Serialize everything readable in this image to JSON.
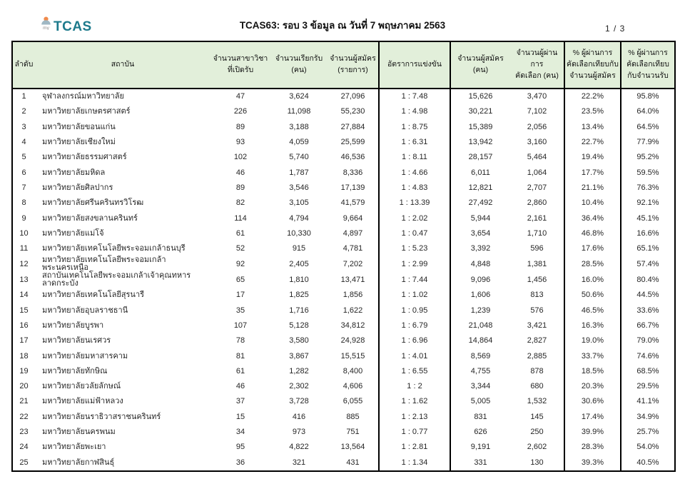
{
  "header": {
    "logo_text": "TCAS",
    "logo_sub": "my",
    "title": "TCAS63: รอบ 3 ข้อมูล ณ วันที่ 7 พฤษภาคม 2563",
    "page_indicator": "1 / 3"
  },
  "colors": {
    "header_bg": "#e2efda",
    "border": "#000000",
    "logo_teal": "#1d7a8c",
    "logo_orange": "#f08a4b"
  },
  "table": {
    "columns": [
      "ลำดับ",
      "สถาบัน",
      "จำนวนสาขาวิชา\nที่เปิดรับ",
      "จำนวนเรียกรับ\n(คน)",
      "จำนวนผู้สมัคร\n(รายการ)",
      "อัตราการแข่งขัน",
      "จำนวนผู้สมัคร\n(คน)",
      "จำนวนผู้ผ่านการ\nคัดเลือก (คน)",
      "% ผู้ผ่านการ\nคัดเลือกเทียบกับ\nจำนวนผู้สมัคร",
      "% ผู้ผ่านการ\nคัดเลือกเทียบ\nกับจำนวนรับ"
    ],
    "rows": [
      [
        "1",
        "จุฬาลงกรณ์มหาวิทยาลัย",
        "47",
        "3,624",
        "27,096",
        "1 : 7.48",
        "15,626",
        "3,470",
        "22.2%",
        "95.8%"
      ],
      [
        "2",
        "มหาวิทยาลัยเกษตรศาสตร์",
        "226",
        "11,098",
        "55,230",
        "1 : 4.98",
        "30,221",
        "7,102",
        "23.5%",
        "64.0%"
      ],
      [
        "3",
        "มหาวิทยาลัยขอนแก่น",
        "89",
        "3,188",
        "27,884",
        "1 : 8.75",
        "15,389",
        "2,056",
        "13.4%",
        "64.5%"
      ],
      [
        "4",
        "มหาวิทยาลัยเชียงใหม่",
        "93",
        "4,059",
        "25,599",
        "1 : 6.31",
        "13,942",
        "3,160",
        "22.7%",
        "77.9%"
      ],
      [
        "5",
        "มหาวิทยาลัยธรรมศาสตร์",
        "102",
        "5,740",
        "46,536",
        "1 : 8.11",
        "28,157",
        "5,464",
        "19.4%",
        "95.2%"
      ],
      [
        "6",
        "มหาวิทยาลัยมหิดล",
        "46",
        "1,787",
        "8,336",
        "1 : 4.66",
        "6,011",
        "1,064",
        "17.7%",
        "59.5%"
      ],
      [
        "7",
        "มหาวิทยาลัยศิลปากร",
        "89",
        "3,546",
        "17,139",
        "1 : 4.83",
        "12,821",
        "2,707",
        "21.1%",
        "76.3%"
      ],
      [
        "8",
        "มหาวิทยาลัยศรีนครินทรวิโรฒ",
        "82",
        "3,105",
        "41,579",
        "1 : 13.39",
        "27,492",
        "2,860",
        "10.4%",
        "92.1%"
      ],
      [
        "9",
        "มหาวิทยาลัยสงขลานครินทร์",
        "114",
        "4,794",
        "9,664",
        "1 : 2.02",
        "5,944",
        "2,161",
        "36.4%",
        "45.1%"
      ],
      [
        "10",
        "มหาวิทยาลัยแม่โจ้",
        "61",
        "10,330",
        "4,897",
        "1 : 0.47",
        "3,654",
        "1,710",
        "46.8%",
        "16.6%"
      ],
      [
        "11",
        "มหาวิทยาลัยเทคโนโลยีพระจอมเกล้าธนบุรี",
        "52",
        "915",
        "4,781",
        "1 : 5.23",
        "3,392",
        "596",
        "17.6%",
        "65.1%"
      ],
      [
        "12",
        "มหาวิทยาลัยเทคโนโลยีพระจอมเกล้าพระนครเหนือ",
        "92",
        "2,405",
        "7,202",
        "1 : 2.99",
        "4,848",
        "1,381",
        "28.5%",
        "57.4%"
      ],
      [
        "13",
        "สถาบันเทคโนโลยีพระจอมเกล้าเจ้าคุณทหารลาดกระบัง",
        "65",
        "1,810",
        "13,471",
        "1 : 7.44",
        "9,096",
        "1,456",
        "16.0%",
        "80.4%"
      ],
      [
        "14",
        "มหาวิทยาลัยเทคโนโลยีสุรนารี",
        "17",
        "1,825",
        "1,856",
        "1 : 1.02",
        "1,606",
        "813",
        "50.6%",
        "44.5%"
      ],
      [
        "15",
        "มหาวิทยาลัยอุบลราชธานี",
        "35",
        "1,716",
        "1,622",
        "1 : 0.95",
        "1,239",
        "576",
        "46.5%",
        "33.6%"
      ],
      [
        "16",
        "มหาวิทยาลัยบูรพา",
        "107",
        "5,128",
        "34,812",
        "1 : 6.79",
        "21,048",
        "3,421",
        "16.3%",
        "66.7%"
      ],
      [
        "17",
        "มหาวิทยาลัยนเรศวร",
        "78",
        "3,580",
        "24,928",
        "1 : 6.96",
        "14,864",
        "2,827",
        "19.0%",
        "79.0%"
      ],
      [
        "18",
        "มหาวิทยาลัยมหาสารคาม",
        "81",
        "3,867",
        "15,515",
        "1 : 4.01",
        "8,569",
        "2,885",
        "33.7%",
        "74.6%"
      ],
      [
        "19",
        "มหาวิทยาลัยทักษิณ",
        "61",
        "1,282",
        "8,400",
        "1 : 6.55",
        "4,755",
        "878",
        "18.5%",
        "68.5%"
      ],
      [
        "20",
        "มหาวิทยาลัยวลัยลักษณ์",
        "46",
        "2,302",
        "4,606",
        "1 : 2",
        "3,344",
        "680",
        "20.3%",
        "29.5%"
      ],
      [
        "21",
        "มหาวิทยาลัยแม่ฟ้าหลวง",
        "37",
        "3,728",
        "6,055",
        "1 : 1.62",
        "5,005",
        "1,532",
        "30.6%",
        "41.1%"
      ],
      [
        "22",
        "มหาวิทยาลัยนราธิวาสราชนครินทร์",
        "15",
        "416",
        "885",
        "1 : 2.13",
        "831",
        "145",
        "17.4%",
        "34.9%"
      ],
      [
        "23",
        "มหาวิทยาลัยนครพนม",
        "34",
        "973",
        "751",
        "1 : 0.77",
        "626",
        "250",
        "39.9%",
        "25.7%"
      ],
      [
        "24",
        "มหาวิทยาลัยพะเยา",
        "95",
        "4,822",
        "13,564",
        "1 : 2.81",
        "9,191",
        "2,602",
        "28.3%",
        "54.0%"
      ],
      [
        "25",
        "มหาวิทยาลัยกาฬสินธุ์",
        "36",
        "321",
        "431",
        "1 : 1.34",
        "331",
        "130",
        "39.3%",
        "40.5%"
      ]
    ]
  }
}
